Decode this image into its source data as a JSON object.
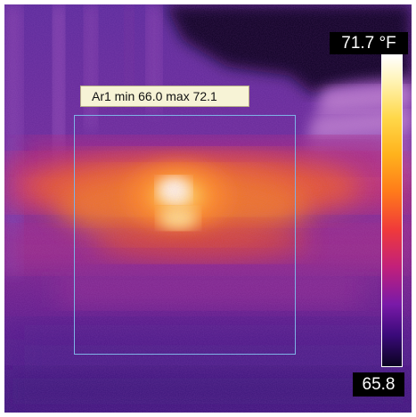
{
  "roi": {
    "label": "Ar1 min 66.0 max 72.1",
    "name": "Ar1",
    "min": 66.0,
    "max": 72.1
  },
  "scale": {
    "max_label": "71.7 °F",
    "min_label": "65.8",
    "unit": "°F",
    "palette": "ironbow",
    "colors": [
      "#ffffff",
      "#ffd84a",
      "#ff7a1a",
      "#c2207a",
      "#3a0a7a",
      "#0a0220"
    ]
  }
}
